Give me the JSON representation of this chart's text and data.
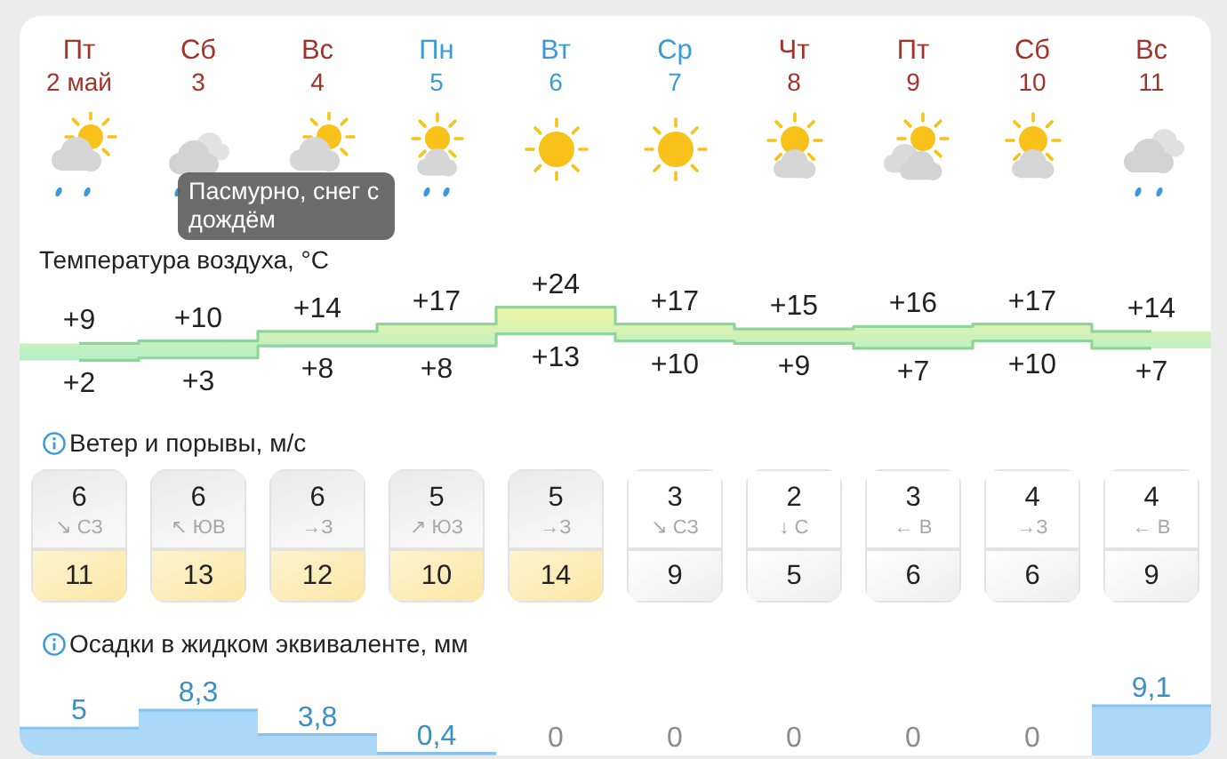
{
  "chart_data": [
    {
      "type": "step",
      "title": "Температура воздуха, °C",
      "categories": [
        "Пт 2 май",
        "Сб 3",
        "Вс 4",
        "Пн 5",
        "Вт 6",
        "Ср 7",
        "Чт 8",
        "Пт 9",
        "Сб 10",
        "Вс 11"
      ],
      "series": [
        {
          "color": "#8fd59b",
          "values": [
            9,
            10,
            14,
            17,
            24,
            17,
            15,
            16,
            17,
            14
          ],
          "value_labels": [
            "+9",
            "+10",
            "+14",
            "+17",
            "+24",
            "+17",
            "+15",
            "+16",
            "+17",
            "+14"
          ]
        },
        {
          "color": "#8fd59b",
          "values": [
            2,
            3,
            8,
            8,
            13,
            10,
            9,
            7,
            10,
            7
          ],
          "value_labels": [
            "+2",
            "+3",
            "+8",
            "+8",
            "+13",
            "+10",
            "+9",
            "+7",
            "+10",
            "+7"
          ]
        }
      ],
      "annotations": [
        "Пасмурно, снег с дождём"
      ]
    },
    {
      "type": "other",
      "title": "Ветер и порывы, м/с",
      "categories": [
        null,
        null,
        null,
        null,
        null,
        null,
        null,
        null,
        null,
        null
      ],
      "annotations": [
        "6",
        "6",
        "6",
        "5",
        "5",
        "3",
        "2",
        "3",
        "4",
        "4",
        "↘ СЗ",
        "↖ ЮВ",
        "→З",
        "↗ ЮЗ",
        "→З",
        "↘ СЗ",
        "↓ С",
        "← В",
        "→З",
        "← В",
        "11",
        "13",
        "12",
        "10",
        "14",
        "9",
        "5",
        "6",
        "6",
        "9"
      ]
    },
    {
      "type": "bar",
      "title": "Осадки в жидком эквиваленте, мм",
      "categories": [
        null,
        null,
        null,
        null,
        null,
        null,
        null,
        null,
        null,
        null
      ],
      "values": [
        5,
        8.3,
        3.8,
        0.4,
        0,
        0,
        0,
        0,
        0,
        9.1
      ],
      "value_labels": [
        "5",
        "8,3",
        "3,8",
        "0,4",
        "0",
        "0",
        "0",
        "0",
        "0",
        "9,1"
      ],
      "color": "#aad8f6"
    }
  ]
}
